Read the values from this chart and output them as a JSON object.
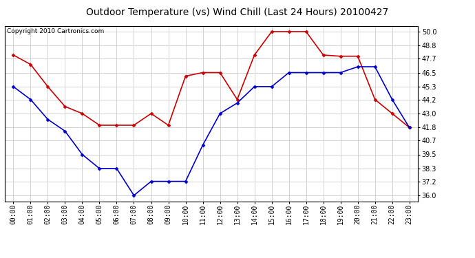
{
  "title": "Outdoor Temperature (vs) Wind Chill (Last 24 Hours) 20100427",
  "copyright": "Copyright 2010 Cartronics.com",
  "hours": [
    "00:00",
    "01:00",
    "02:00",
    "03:00",
    "04:00",
    "05:00",
    "06:00",
    "07:00",
    "08:00",
    "09:00",
    "10:00",
    "11:00",
    "12:00",
    "13:00",
    "14:00",
    "15:00",
    "16:00",
    "17:00",
    "18:00",
    "19:00",
    "20:00",
    "21:00",
    "22:00",
    "23:00"
  ],
  "temp": [
    48.0,
    47.2,
    45.3,
    43.6,
    43.0,
    42.0,
    42.0,
    42.0,
    43.0,
    42.0,
    46.2,
    46.5,
    46.5,
    44.2,
    48.0,
    50.0,
    50.0,
    50.0,
    48.0,
    47.9,
    47.9,
    44.2,
    43.0,
    41.8
  ],
  "windchill": [
    45.3,
    44.2,
    42.5,
    41.5,
    39.5,
    38.3,
    38.3,
    36.0,
    37.2,
    37.2,
    37.2,
    40.3,
    43.0,
    43.9,
    45.3,
    45.3,
    46.5,
    46.5,
    46.5,
    46.5,
    47.0,
    47.0,
    44.2,
    41.8
  ],
  "temp_color": "#cc0000",
  "windchill_color": "#0000cc",
  "fig_bg_color": "#ffffff",
  "plot_bg_color": "#ffffff",
  "grid_color": "#cccccc",
  "yticks": [
    36.0,
    37.2,
    38.3,
    39.5,
    40.7,
    41.8,
    43.0,
    44.2,
    45.3,
    46.5,
    47.7,
    48.8,
    50.0
  ],
  "ylim": [
    35.5,
    50.5
  ],
  "xlim": [
    -0.5,
    23.5
  ],
  "title_fontsize": 10,
  "copyright_fontsize": 6.5,
  "tick_fontsize": 7
}
